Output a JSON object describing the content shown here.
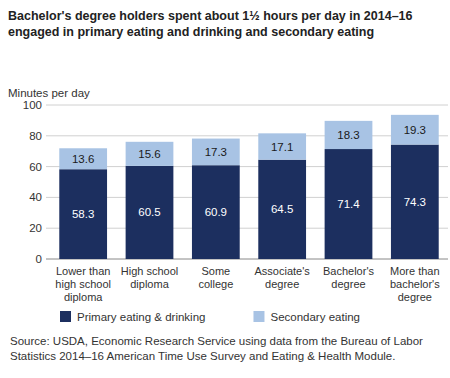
{
  "chart_data": {
    "type": "bar",
    "title": "Bachelor's degree holders spent about 1½ hours per day in 2014–16 engaged in primary eating and drinking and secondary eating",
    "y_label": "Minutes per day",
    "categories": [
      "Lower than high school diploma",
      "High school diploma",
      "Some college",
      "Associate's degree",
      "Bachelor's degree",
      "More than bachelor's degree"
    ],
    "series": [
      {
        "name": "Primary eating & drinking",
        "color": "#1c2f5f",
        "values": [
          58.3,
          60.5,
          60.9,
          64.5,
          71.4,
          74.3
        ]
      },
      {
        "name": "Secondary eating",
        "color": "#a8c3e4",
        "values": [
          13.6,
          15.6,
          17.3,
          17.1,
          18.3,
          19.3
        ]
      }
    ],
    "ylim": [
      0,
      100
    ],
    "yticks": [
      0,
      20,
      40,
      60,
      80,
      100
    ],
    "stacked": true,
    "data_labels": true,
    "grid": true,
    "legend": "bottom",
    "source": "Source: USDA, Economic Research Service using data from the Bureau of Labor Statistics 2014–16 American Time Use Survey and Eating & Health Module."
  }
}
